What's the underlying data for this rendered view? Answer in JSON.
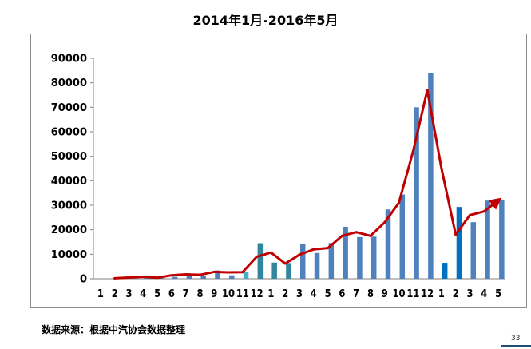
{
  "chart_data": {
    "type": "bar+line",
    "title": "2014年1月-2016年5月",
    "categories": [
      "1",
      "2",
      "3",
      "4",
      "5",
      "6",
      "7",
      "8",
      "9",
      "10",
      "11",
      "12",
      "1",
      "2",
      "3",
      "4",
      "5",
      "6",
      "7",
      "8",
      "9",
      "10",
      "11",
      "12",
      "1",
      "2",
      "3",
      "4",
      "5"
    ],
    "ylim": [
      0,
      90000
    ],
    "yticks": [
      0,
      10000,
      20000,
      30000,
      40000,
      50000,
      60000,
      70000,
      80000,
      90000
    ],
    "grid": false,
    "legend": "none",
    "series": [
      {
        "type": "bar",
        "values": [
          0,
          200,
          500,
          700,
          400,
          800,
          1400,
          1000,
          3400,
          1400,
          2600,
          14500,
          6600,
          6400,
          14300,
          10500,
          14600,
          21200,
          17000,
          17200,
          28300,
          34400,
          70000,
          84000,
          6500,
          29300,
          23100,
          31900,
          32200
        ],
        "colors": [
          "#4f81bd",
          "#4f81bd",
          "#4f81bd",
          "#4f81bd",
          "#4f81bd",
          "#4f81bd",
          "#4f81bd",
          "#4f81bd",
          "#4f81bd",
          "#4f81bd",
          "#4bacc6",
          "#31859c",
          "#31859c",
          "#31859c",
          "#4f81bd",
          "#4f81bd",
          "#4f81bd",
          "#4f81bd",
          "#4f81bd",
          "#4f81bd",
          "#4f81bd",
          "#4f81bd",
          "#4f81bd",
          "#4f81bd",
          "#0070c0",
          "#0070c0",
          "#4f81bd",
          "#4f81bd",
          "#4f81bd"
        ]
      },
      {
        "type": "line",
        "values": [
          null,
          200,
          500,
          800,
          400,
          1400,
          1800,
          1600,
          2800,
          2600,
          2700,
          9000,
          10700,
          6200,
          9800,
          12000,
          12500,
          17500,
          19000,
          17500,
          23000,
          31000,
          52000,
          77000,
          45000,
          18000,
          26000,
          27500,
          32000
        ],
        "color": "#c00000",
        "arrow_end": true
      }
    ]
  },
  "footer": {
    "source": "数据来源：根据中汽协会数据整理",
    "page": "33"
  }
}
